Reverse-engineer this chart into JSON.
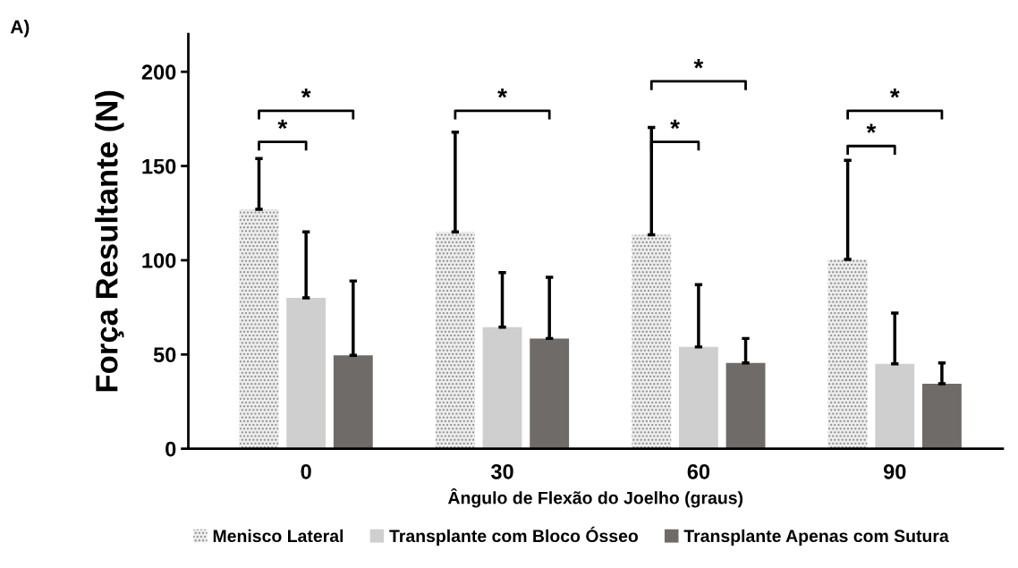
{
  "chart_data": {
    "type": "bar",
    "xlabel": "Ângulo de Flexão do Joelho (graus)",
    "ylabel": "Força Resultante (N)",
    "categories": [
      "0",
      "30",
      "60",
      "90"
    ],
    "series": [
      {
        "name": "Menisco Lateral",
        "color": "#ececec",
        "values": [
          127,
          115,
          113.5,
          100.5
        ],
        "errors": [
          [
            127,
            154
          ],
          [
            115,
            168
          ],
          [
            113.5,
            170.5
          ],
          [
            100.5,
            153
          ]
        ]
      },
      {
        "name": "Transplante com Bloco Ósseo",
        "color": "#cfcfcf",
        "values": [
          80,
          64.5,
          54,
          45
        ],
        "errors": [
          [
            80,
            115
          ],
          [
            64.5,
            93.5
          ],
          [
            54,
            87
          ],
          [
            45,
            72
          ]
        ]
      },
      {
        "name": "Transplante Apenas com Sutura",
        "color": "#6f6b69",
        "values": [
          49.5,
          58.5,
          45.5,
          34.5
        ],
        "errors": [
          [
            49.5,
            89
          ],
          [
            58.5,
            91
          ],
          [
            45.5,
            58.5
          ],
          [
            34.5,
            45.5
          ]
        ]
      }
    ],
    "ylim": [
      0,
      220
    ],
    "yticks": [
      0,
      50,
      100,
      150,
      200
    ],
    "legend": "bottom",
    "annotations": [
      "A)",
      "*",
      "*",
      "*",
      "*",
      "*",
      "*",
      "*"
    ]
  }
}
